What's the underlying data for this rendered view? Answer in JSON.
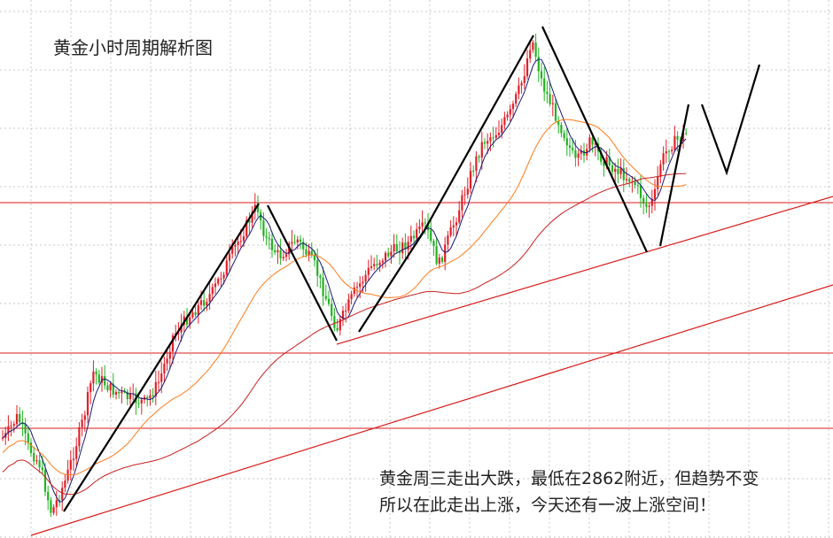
{
  "title": "黄金小时周期解析图",
  "note_lines": [
    "黄金周三走出大跌，最低在2862附近，但趋势不变",
    "所以在此走出上涨，今天还有一波上涨空间！"
  ],
  "chart_data": {
    "type": "candlestick",
    "timeframe": "hourly",
    "colors": {
      "up": "#e0202a",
      "down": "#22b322",
      "ma_fast": "#1a1a7a",
      "ma_mid": "#ff7a1a",
      "ma_slow": "#c81e1e",
      "trendlines": "#d81b1b",
      "pattern": "#000000",
      "grid": "#c8c8c8"
    },
    "grid": true,
    "horizontal_levels": 3,
    "rising_support_lines": 2,
    "zigzag_pattern": "rise-fall-rise-fall-rise, projected dip then rise"
  }
}
